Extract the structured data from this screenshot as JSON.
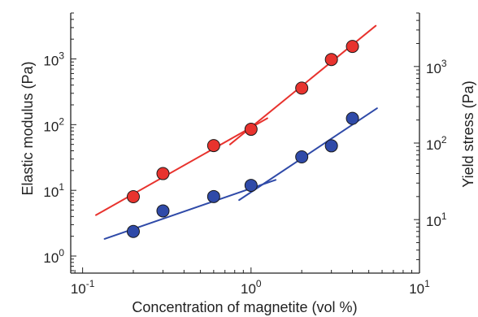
{
  "chart_data": {
    "type": "scatter",
    "xlabel": "Concentration of magnetite (vol %)",
    "ylabel_left": "Elastic modulus (Pa)",
    "ylabel_right": "Yield stress (Pa)",
    "x_scale": "log",
    "y_scale": "log",
    "xlim": [
      0.085,
      10
    ],
    "ylim_left": [
      0.55,
      5000
    ],
    "ylim_right": [
      2,
      5000
    ],
    "x_ticks": [
      {
        "base": "10",
        "exp": "-1",
        "value": 0.1
      },
      {
        "base": "10",
        "exp": "0",
        "value": 1
      },
      {
        "base": "10",
        "exp": "1",
        "value": 10
      }
    ],
    "y_ticks_left": [
      {
        "base": "10",
        "exp": "0",
        "value": 1
      },
      {
        "base": "10",
        "exp": "1",
        "value": 10
      },
      {
        "base": "10",
        "exp": "2",
        "value": 100
      },
      {
        "base": "10",
        "exp": "3",
        "value": 1000
      }
    ],
    "y_ticks_right": [
      {
        "base": "10",
        "exp": "1",
        "value": 10
      },
      {
        "base": "10",
        "exp": "2",
        "value": 100
      },
      {
        "base": "10",
        "exp": "3",
        "value": 1000
      }
    ],
    "grid": false,
    "series": [
      {
        "color": "#e8332e",
        "axis": "left",
        "x": [
          0.2,
          0.3,
          0.6,
          1.0,
          2.0,
          3.0,
          4.0
        ],
        "y": [
          8,
          18,
          48,
          85,
          360,
          980,
          1550
        ],
        "fits": [
          {
            "x": [
              0.12,
              1.25
            ],
            "y": [
              4.2,
              125
            ]
          },
          {
            "x": [
              0.75,
              5.5
            ],
            "y": [
              50,
              3200
            ]
          }
        ]
      },
      {
        "color": "#2f4aa8",
        "axis": "right",
        "x": [
          0.2,
          0.3,
          0.6,
          1.0,
          2.0,
          3.0,
          4.0
        ],
        "y": [
          7,
          13,
          20,
          28,
          66,
          92,
          210
        ],
        "fits": [
          {
            "x": [
              0.135,
              1.4
            ],
            "y": [
              5.6,
              33
            ]
          },
          {
            "x": [
              0.85,
              5.6
            ],
            "y": [
              18,
              285
            ]
          }
        ]
      }
    ]
  }
}
